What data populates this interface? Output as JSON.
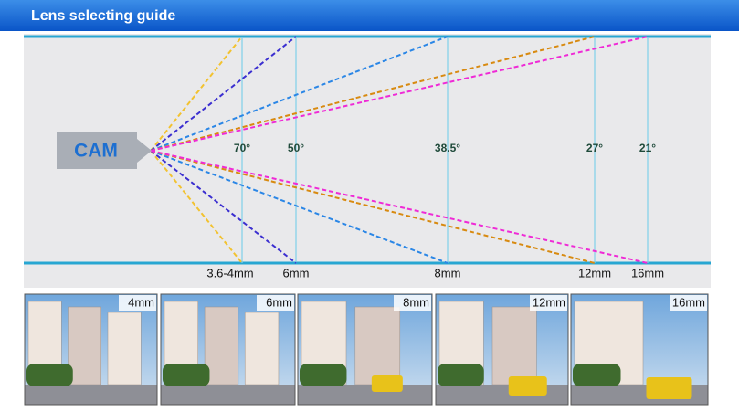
{
  "header": {
    "title": "Lens selecting guide"
  },
  "camera": {
    "label": "CAM"
  },
  "lenses": [
    {
      "angle": "70°",
      "focal_length": "3.6-4mm"
    },
    {
      "angle": "50°",
      "focal_length": "6mm"
    },
    {
      "angle": "38.5°",
      "focal_length": "8mm"
    },
    {
      "angle": "27°",
      "focal_length": "12mm"
    },
    {
      "angle": "21°",
      "focal_length": "16mm"
    }
  ],
  "photos": [
    {
      "label": "4mm"
    },
    {
      "label": "6mm"
    },
    {
      "label": "8mm"
    },
    {
      "label": "12mm"
    },
    {
      "label": "16mm"
    }
  ]
}
